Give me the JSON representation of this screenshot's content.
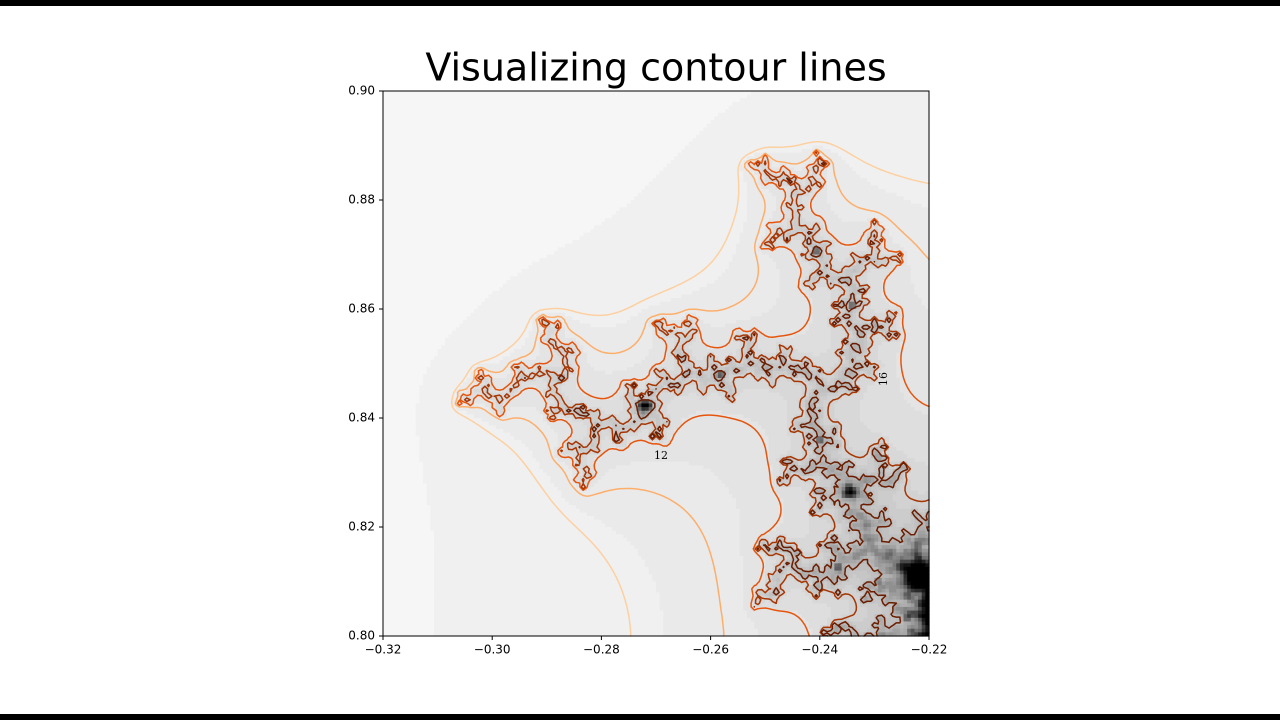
{
  "chart_data": {
    "type": "contour",
    "title": "Visualizing contour lines",
    "title_color": "#e00000",
    "xlim": [
      -0.32,
      -0.22
    ],
    "ylim": [
      0.8,
      0.9
    ],
    "xticks": [
      {
        "value": -0.32,
        "label": "−0.32"
      },
      {
        "value": -0.3,
        "label": "−0.30"
      },
      {
        "value": -0.28,
        "label": "−0.28"
      },
      {
        "value": -0.26,
        "label": "−0.26"
      },
      {
        "value": -0.24,
        "label": "−0.24"
      },
      {
        "value": -0.22,
        "label": "−0.22"
      }
    ],
    "yticks": [
      {
        "value": 0.8,
        "label": "0.80"
      },
      {
        "value": 0.82,
        "label": "0.82"
      },
      {
        "value": 0.84,
        "label": "0.84"
      },
      {
        "value": 0.86,
        "label": "0.86"
      },
      {
        "value": 0.88,
        "label": "0.88"
      },
      {
        "value": 0.9,
        "label": "0.90"
      }
    ],
    "levels": [
      10,
      12,
      16,
      24,
      40
    ],
    "level_colors": [
      "#fdd0a2",
      "#fdae6b",
      "#e6550d",
      "#a63603",
      "#6b1d00"
    ],
    "contour_labels": [
      12,
      16
    ]
  }
}
